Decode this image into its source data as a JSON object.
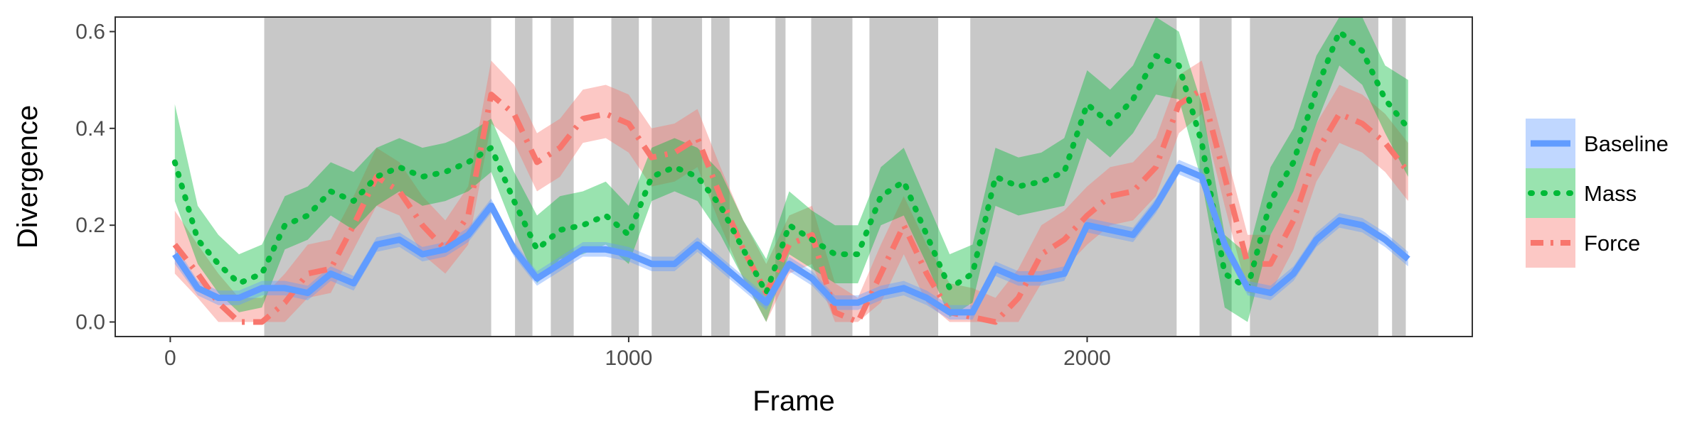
{
  "chart_data": {
    "type": "line",
    "title": "",
    "xlabel": "Frame",
    "ylabel": "Divergence",
    "xlim": [
      -120,
      2840
    ],
    "ylim": [
      -0.03,
      0.63
    ],
    "x_ticks": [
      0,
      1000,
      2000
    ],
    "x_tick_labels": [
      "0",
      "1000",
      "2000"
    ],
    "y_ticks": [
      0.0,
      0.2,
      0.4,
      0.6
    ],
    "y_tick_labels": [
      "0.0",
      "0.2",
      "0.4",
      "0.6"
    ],
    "grid": false,
    "legend_position": "right",
    "shaded_frame_ranges": [
      [
        205,
        700
      ],
      [
        752,
        790
      ],
      [
        830,
        880
      ],
      [
        962,
        1022
      ],
      [
        1050,
        1160
      ],
      [
        1180,
        1220
      ],
      [
        1320,
        1342
      ],
      [
        1398,
        1488
      ],
      [
        1525,
        1675
      ],
      [
        1745,
        2195
      ],
      [
        2245,
        2315
      ],
      [
        2355,
        2635
      ],
      [
        2665,
        2695
      ]
    ],
    "x": [
      10,
      60,
      105,
      150,
      200,
      250,
      300,
      350,
      400,
      450,
      500,
      550,
      600,
      650,
      700,
      750,
      800,
      850,
      900,
      950,
      1000,
      1050,
      1100,
      1150,
      1200,
      1250,
      1300,
      1350,
      1400,
      1450,
      1500,
      1550,
      1600,
      1650,
      1700,
      1750,
      1800,
      1850,
      1900,
      1950,
      2000,
      2050,
      2100,
      2150,
      2200,
      2250,
      2300,
      2350,
      2400,
      2450,
      2500,
      2550,
      2600,
      2650,
      2700
    ],
    "series": [
      {
        "name": "Baseline",
        "color": "#619CFF",
        "style": "solid",
        "values": [
          0.14,
          0.07,
          0.05,
          0.05,
          0.07,
          0.07,
          0.06,
          0.1,
          0.08,
          0.16,
          0.17,
          0.14,
          0.15,
          0.18,
          0.24,
          0.15,
          0.09,
          0.12,
          0.15,
          0.15,
          0.14,
          0.12,
          0.12,
          0.16,
          0.12,
          0.08,
          0.04,
          0.12,
          0.09,
          0.04,
          0.04,
          0.06,
          0.07,
          0.05,
          0.02,
          0.02,
          0.11,
          0.09,
          0.09,
          0.1,
          0.2,
          0.19,
          0.18,
          0.24,
          0.32,
          0.3,
          0.16,
          0.07,
          0.06,
          0.1,
          0.17,
          0.21,
          0.2,
          0.17,
          0.13
        ],
        "lower": [
          0.12,
          0.055,
          0.035,
          0.035,
          0.055,
          0.055,
          0.045,
          0.085,
          0.065,
          0.145,
          0.155,
          0.125,
          0.135,
          0.165,
          0.225,
          0.135,
          0.075,
          0.105,
          0.135,
          0.135,
          0.125,
          0.105,
          0.105,
          0.145,
          0.105,
          0.065,
          0.025,
          0.105,
          0.075,
          0.025,
          0.025,
          0.045,
          0.055,
          0.035,
          0.005,
          0.005,
          0.095,
          0.075,
          0.075,
          0.085,
          0.185,
          0.175,
          0.165,
          0.225,
          0.305,
          0.285,
          0.145,
          0.055,
          0.045,
          0.085,
          0.155,
          0.195,
          0.185,
          0.155,
          0.115
        ],
        "upper": [
          0.16,
          0.085,
          0.065,
          0.065,
          0.085,
          0.085,
          0.075,
          0.115,
          0.095,
          0.175,
          0.185,
          0.155,
          0.165,
          0.195,
          0.255,
          0.165,
          0.105,
          0.135,
          0.165,
          0.165,
          0.155,
          0.135,
          0.135,
          0.175,
          0.135,
          0.095,
          0.055,
          0.135,
          0.105,
          0.055,
          0.055,
          0.075,
          0.085,
          0.065,
          0.035,
          0.035,
          0.125,
          0.105,
          0.105,
          0.115,
          0.215,
          0.205,
          0.195,
          0.255,
          0.335,
          0.315,
          0.175,
          0.085,
          0.075,
          0.115,
          0.185,
          0.225,
          0.215,
          0.185,
          0.145
        ]
      },
      {
        "name": "Mass",
        "color": "#00BA38",
        "style": "dotted",
        "values": [
          0.33,
          0.17,
          0.12,
          0.08,
          0.1,
          0.2,
          0.22,
          0.27,
          0.25,
          0.3,
          0.32,
          0.3,
          0.31,
          0.33,
          0.36,
          0.25,
          0.15,
          0.19,
          0.2,
          0.22,
          0.18,
          0.3,
          0.32,
          0.3,
          0.24,
          0.15,
          0.06,
          0.2,
          0.17,
          0.14,
          0.14,
          0.26,
          0.29,
          0.18,
          0.07,
          0.1,
          0.3,
          0.28,
          0.29,
          0.31,
          0.45,
          0.41,
          0.46,
          0.55,
          0.53,
          0.37,
          0.1,
          0.07,
          0.25,
          0.33,
          0.48,
          0.6,
          0.56,
          0.46,
          0.4
        ],
        "lower": [
          0.25,
          0.12,
          0.06,
          0.02,
          0.03,
          0.15,
          0.17,
          0.22,
          0.19,
          0.24,
          0.27,
          0.24,
          0.25,
          0.27,
          0.31,
          0.19,
          0.08,
          0.13,
          0.14,
          0.16,
          0.12,
          0.25,
          0.27,
          0.25,
          0.18,
          0.09,
          0.0,
          0.14,
          0.11,
          0.08,
          0.08,
          0.2,
          0.22,
          0.12,
          0.01,
          0.04,
          0.24,
          0.22,
          0.23,
          0.24,
          0.38,
          0.34,
          0.39,
          0.47,
          0.46,
          0.29,
          0.03,
          0.0,
          0.18,
          0.27,
          0.41,
          0.53,
          0.49,
          0.39,
          0.3
        ],
        "upper": [
          0.45,
          0.24,
          0.18,
          0.14,
          0.16,
          0.26,
          0.28,
          0.33,
          0.31,
          0.36,
          0.38,
          0.36,
          0.37,
          0.39,
          0.42,
          0.31,
          0.22,
          0.26,
          0.27,
          0.29,
          0.24,
          0.36,
          0.38,
          0.36,
          0.31,
          0.21,
          0.13,
          0.27,
          0.23,
          0.2,
          0.2,
          0.32,
          0.36,
          0.25,
          0.14,
          0.16,
          0.36,
          0.34,
          0.35,
          0.38,
          0.52,
          0.48,
          0.53,
          0.63,
          0.6,
          0.45,
          0.18,
          0.14,
          0.32,
          0.4,
          0.55,
          0.63,
          0.63,
          0.53,
          0.5
        ]
      },
      {
        "name": "Force",
        "color": "#F8766D",
        "style": "dashdot",
        "values": [
          0.16,
          0.1,
          0.04,
          0.0,
          0.0,
          0.04,
          0.1,
          0.11,
          0.2,
          0.3,
          0.27,
          0.2,
          0.15,
          0.22,
          0.47,
          0.43,
          0.33,
          0.36,
          0.42,
          0.43,
          0.41,
          0.34,
          0.35,
          0.38,
          0.26,
          0.15,
          0.06,
          0.16,
          0.18,
          0.02,
          0.0,
          0.1,
          0.2,
          0.1,
          0.02,
          0.01,
          0.0,
          0.05,
          0.14,
          0.17,
          0.22,
          0.26,
          0.27,
          0.32,
          0.45,
          0.48,
          0.3,
          0.12,
          0.12,
          0.21,
          0.35,
          0.43,
          0.41,
          0.37,
          0.31
        ],
        "lower": [
          0.1,
          0.05,
          0.0,
          0.0,
          0.0,
          0.0,
          0.05,
          0.06,
          0.15,
          0.24,
          0.22,
          0.14,
          0.1,
          0.16,
          0.41,
          0.37,
          0.27,
          0.3,
          0.37,
          0.38,
          0.35,
          0.28,
          0.29,
          0.32,
          0.2,
          0.09,
          0.0,
          0.1,
          0.12,
          0.0,
          0.0,
          0.04,
          0.14,
          0.04,
          0.0,
          0.0,
          0.0,
          0.0,
          0.08,
          0.11,
          0.16,
          0.2,
          0.21,
          0.26,
          0.39,
          0.43,
          0.24,
          0.06,
          0.06,
          0.15,
          0.29,
          0.37,
          0.35,
          0.31,
          0.25
        ],
        "upper": [
          0.23,
          0.16,
          0.1,
          0.05,
          0.05,
          0.1,
          0.16,
          0.17,
          0.26,
          0.36,
          0.33,
          0.26,
          0.21,
          0.28,
          0.54,
          0.49,
          0.39,
          0.42,
          0.48,
          0.49,
          0.47,
          0.4,
          0.41,
          0.44,
          0.32,
          0.21,
          0.12,
          0.22,
          0.24,
          0.08,
          0.05,
          0.16,
          0.26,
          0.16,
          0.08,
          0.07,
          0.05,
          0.11,
          0.2,
          0.23,
          0.28,
          0.32,
          0.33,
          0.38,
          0.51,
          0.54,
          0.36,
          0.18,
          0.18,
          0.27,
          0.41,
          0.49,
          0.47,
          0.43,
          0.37
        ]
      }
    ]
  }
}
